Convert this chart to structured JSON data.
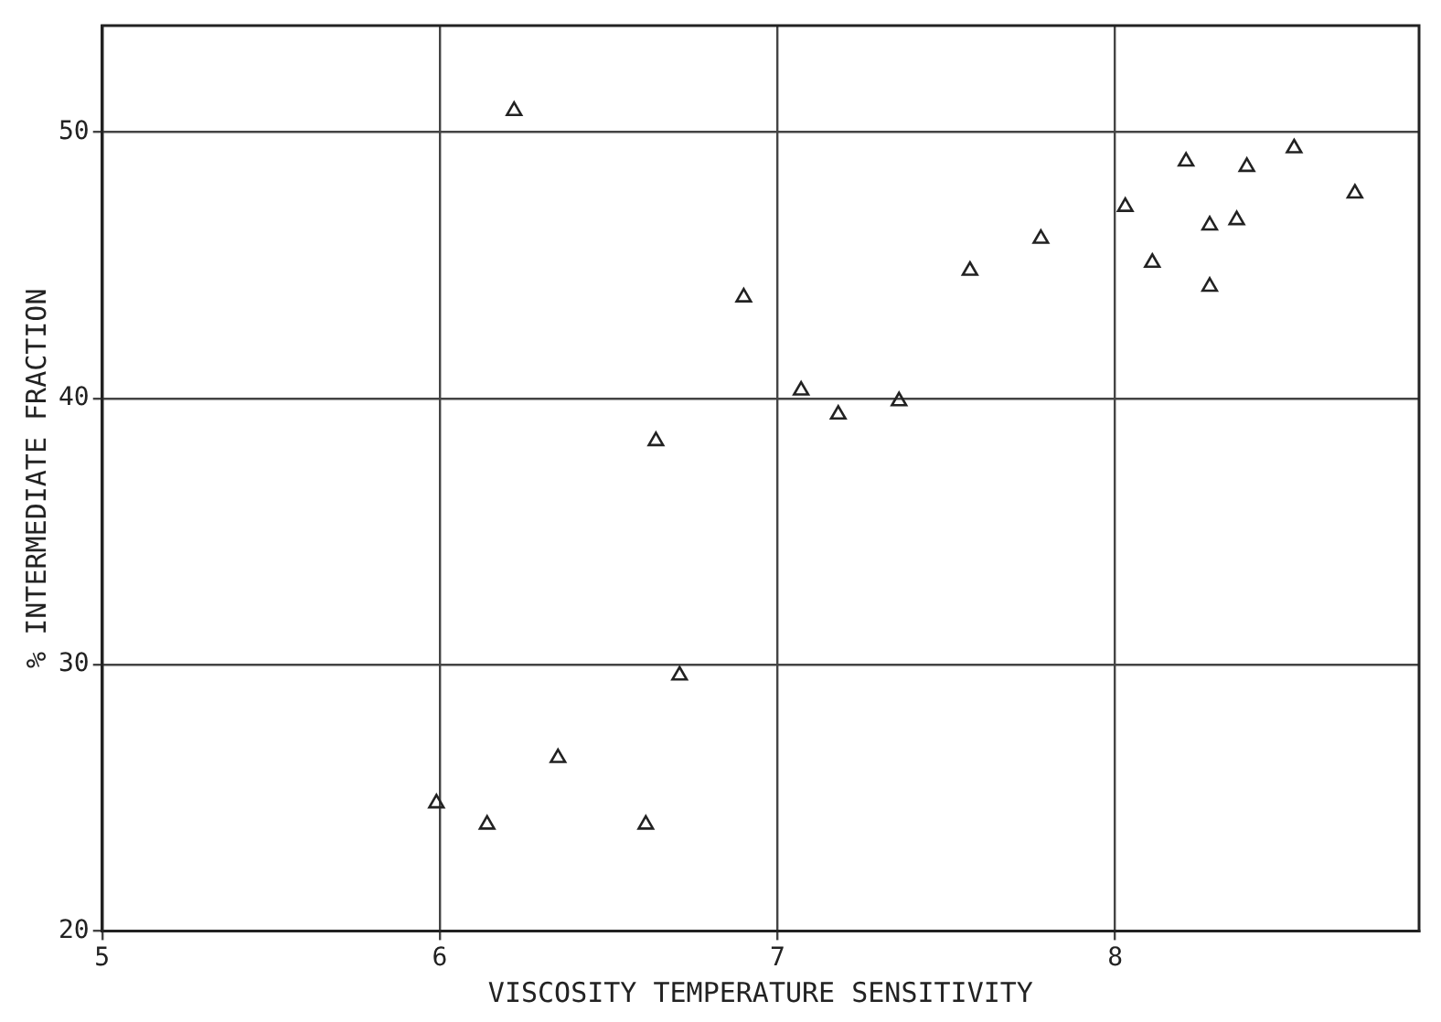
{
  "chart_data": {
    "type": "scatter",
    "xlabel": "VISCOSITY TEMPERATURE SENSITIVITY",
    "ylabel": "% INTERMEDIATE FRACTION",
    "x": [
      5.99,
      6.14,
      6.22,
      6.35,
      6.61,
      6.64,
      6.71,
      6.9,
      7.07,
      7.18,
      7.36,
      7.57,
      7.78,
      8.03,
      8.11,
      8.21,
      8.28,
      8.28,
      8.36,
      8.39,
      8.53,
      8.71
    ],
    "values": [
      24.8,
      24.0,
      50.8,
      26.5,
      24.0,
      38.4,
      29.6,
      43.8,
      40.3,
      39.4,
      39.9,
      44.8,
      46.0,
      47.2,
      45.1,
      48.9,
      46.5,
      44.2,
      46.7,
      48.7,
      49.4,
      47.7
    ],
    "color": "#222222",
    "marker": "triangle",
    "xlim": [
      5,
      8.9
    ],
    "ylim": [
      20,
      54
    ],
    "xticks": [
      5,
      6,
      7,
      8
    ],
    "yticks": [
      20,
      30,
      40,
      50
    ],
    "grid": true
  }
}
